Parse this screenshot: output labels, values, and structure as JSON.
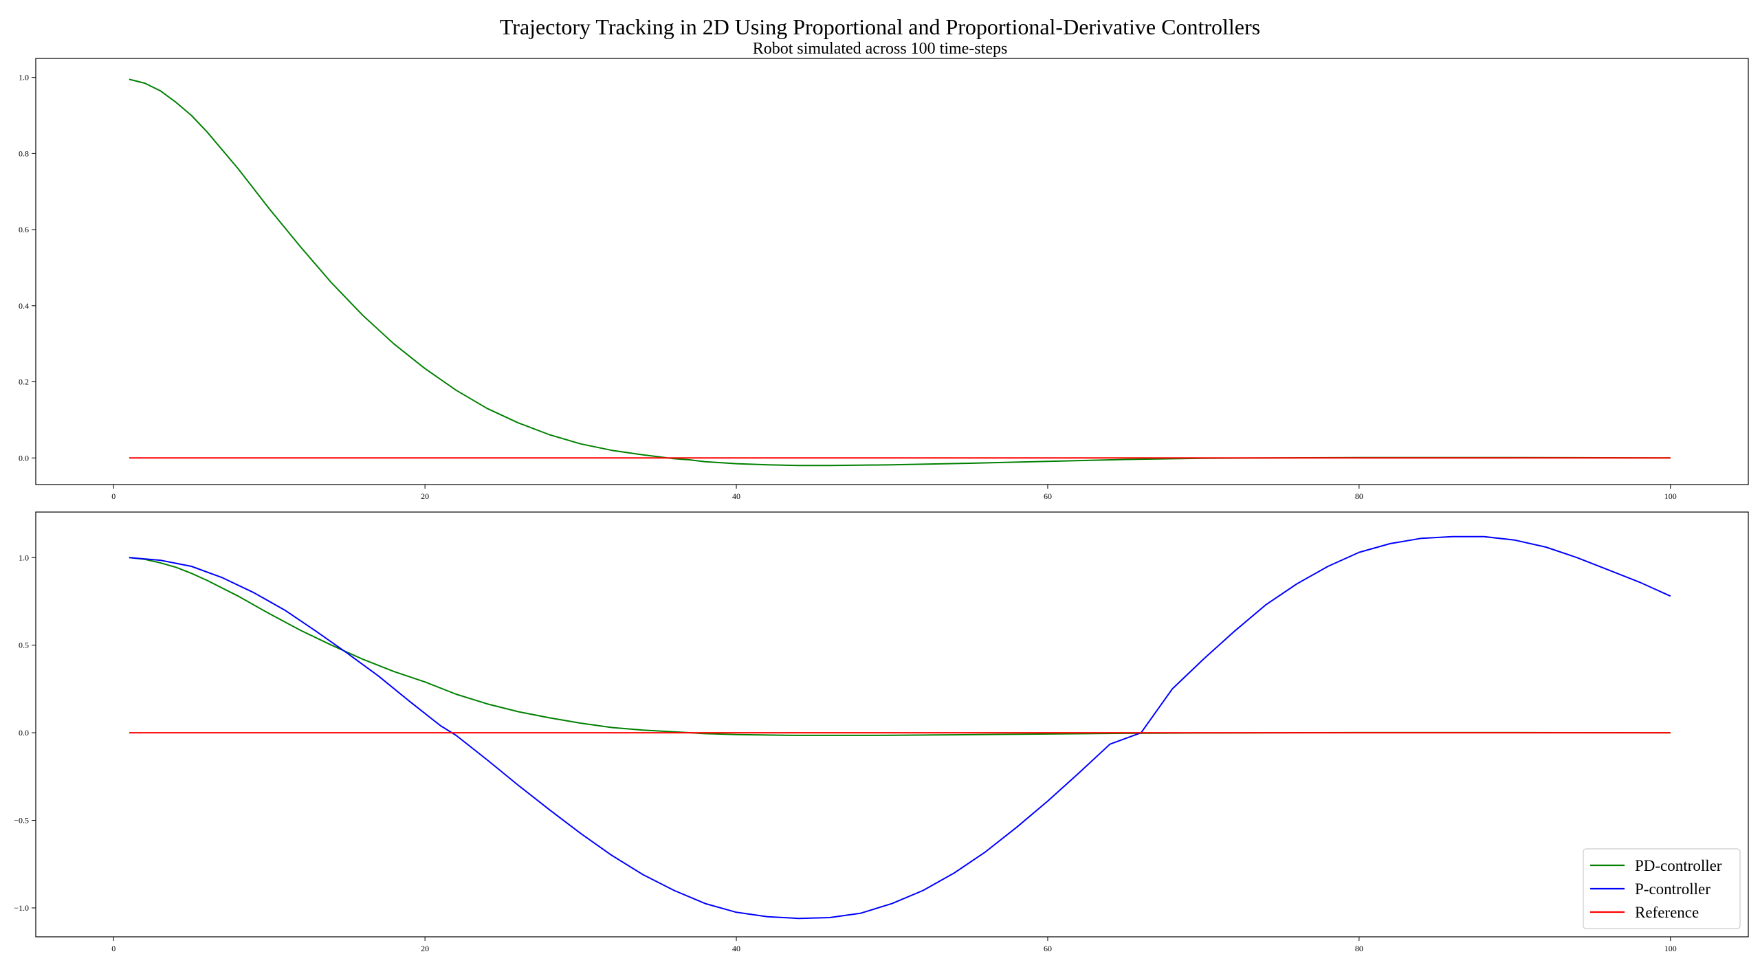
{
  "figure": {
    "title": "Trajectory Tracking in 2D Using Proportional and Proportional-Derivative Controllers",
    "subtitle": "Robot simulated across 100 time-steps"
  },
  "chart_data": [
    {
      "type": "line",
      "xlim": [
        -5,
        105
      ],
      "ylim": [
        -0.07,
        1.05
      ],
      "xticks": [
        0,
        20,
        40,
        60,
        80,
        100
      ],
      "xtick_labels": [
        "0",
        "20",
        "40",
        "60",
        "80",
        "100"
      ],
      "yticks": [
        0.0,
        0.2,
        0.4,
        0.6,
        0.8,
        1.0
      ],
      "ytick_labels": [
        "0.0",
        "0.2",
        "0.4",
        "0.6",
        "0.8",
        "1.0"
      ],
      "grid": false,
      "legend": null,
      "series": [
        {
          "key": "pd",
          "color": "#008000",
          "x": [
            1,
            2,
            3,
            4,
            5,
            6,
            8,
            10,
            12,
            14,
            16,
            18,
            20,
            22,
            24,
            26,
            28,
            30,
            32,
            34,
            36,
            37,
            38,
            40,
            42,
            44,
            46,
            48,
            50,
            55,
            60,
            65,
            70,
            80,
            90,
            100
          ],
          "values": [
            0.995,
            0.985,
            0.965,
            0.935,
            0.9,
            0.857,
            0.76,
            0.655,
            0.555,
            0.46,
            0.375,
            0.3,
            0.235,
            0.178,
            0.13,
            0.092,
            0.061,
            0.037,
            0.02,
            0.008,
            -0.002,
            -0.005,
            -0.01,
            -0.015,
            -0.018,
            -0.02,
            -0.02,
            -0.019,
            -0.018,
            -0.014,
            -0.009,
            -0.004,
            -0.001,
            0.001,
            0.001,
            0.0
          ]
        },
        {
          "key": "ref",
          "color": "#ff0000",
          "x": [
            1,
            100
          ],
          "values": [
            0.0,
            0.0
          ]
        }
      ]
    },
    {
      "type": "line",
      "xlim": [
        -5,
        105
      ],
      "ylim": [
        -1.165,
        1.26
      ],
      "xticks": [
        0,
        20,
        40,
        60,
        80,
        100
      ],
      "xtick_labels": [
        "0",
        "20",
        "40",
        "60",
        "80",
        "100"
      ],
      "yticks": [
        -1.0,
        -0.5,
        0.0,
        0.5,
        1.0
      ],
      "ytick_labels": [
        "−1.0",
        "−0.5",
        "0.0",
        "0.5",
        "1.0"
      ],
      "grid": false,
      "legend": "lower-right",
      "series": [
        {
          "key": "pd",
          "name": "PD-controller",
          "color": "#008000",
          "x": [
            1,
            2,
            3,
            4,
            5,
            6,
            8,
            10,
            12,
            14,
            16,
            18,
            20,
            22,
            24,
            26,
            28,
            30,
            32,
            34,
            36,
            38,
            40,
            42,
            44,
            46,
            48,
            50,
            55,
            60,
            65,
            70,
            80,
            90,
            100
          ],
          "values": [
            1.0,
            0.99,
            0.97,
            0.945,
            0.91,
            0.87,
            0.78,
            0.68,
            0.585,
            0.5,
            0.42,
            0.35,
            0.29,
            0.22,
            0.165,
            0.12,
            0.085,
            0.055,
            0.03,
            0.015,
            0.005,
            -0.005,
            -0.01,
            -0.013,
            -0.015,
            -0.015,
            -0.015,
            -0.014,
            -0.011,
            -0.007,
            -0.003,
            -0.001,
            0.001,
            0.001,
            0.0
          ]
        },
        {
          "key": "p",
          "name": "P-controller",
          "color": "#0000ff",
          "x": [
            1,
            3,
            5,
            7,
            9,
            11,
            13,
            15,
            17,
            19,
            21,
            22,
            24,
            26,
            28,
            30,
            32,
            34,
            36,
            38,
            40,
            42,
            44,
            46,
            48,
            50,
            52,
            54,
            56,
            58,
            60,
            62,
            64,
            66,
            68,
            70,
            72,
            74,
            76,
            78,
            80,
            82,
            84,
            86,
            88,
            90,
            92,
            94,
            96,
            98,
            100
          ],
          "values": [
            1.0,
            0.985,
            0.95,
            0.885,
            0.8,
            0.7,
            0.58,
            0.455,
            0.325,
            0.18,
            0.04,
            -0.015,
            -0.155,
            -0.3,
            -0.44,
            -0.575,
            -0.7,
            -0.81,
            -0.9,
            -0.975,
            -1.025,
            -1.05,
            -1.06,
            -1.055,
            -1.03,
            -0.975,
            -0.9,
            -0.8,
            -0.68,
            -0.54,
            -0.39,
            -0.23,
            -0.065,
            0.0,
            0.25,
            0.42,
            0.58,
            0.73,
            0.85,
            0.95,
            1.03,
            1.08,
            1.11,
            1.12,
            1.12,
            1.1,
            1.06,
            1.0,
            0.93,
            0.86,
            0.78
          ]
        },
        {
          "key": "ref",
          "name": "Reference",
          "color": "#ff0000",
          "x": [
            1,
            100
          ],
          "values": [
            0.0,
            0.0
          ]
        }
      ]
    }
  ]
}
